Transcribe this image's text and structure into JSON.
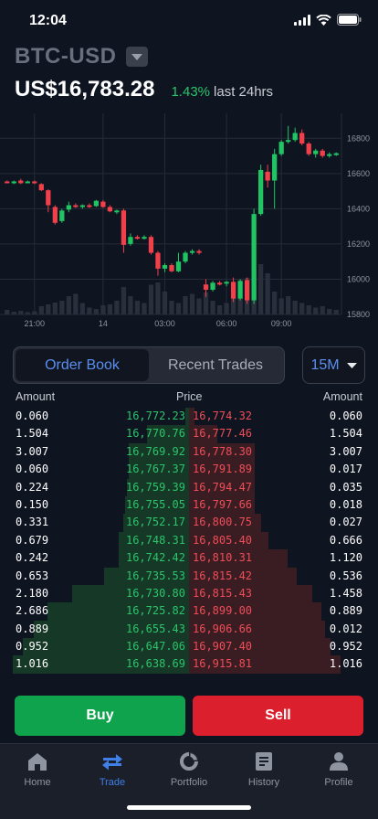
{
  "status": {
    "time": "12:04"
  },
  "header": {
    "pair": "BTC-USD",
    "price": "US$16,783.28",
    "change_pct": "1.43%",
    "change_label": "last 24hrs"
  },
  "chart_data": {
    "type": "candlestick",
    "y_ticks": [
      "15800",
      "16000",
      "16200",
      "16400",
      "16600",
      "16800"
    ],
    "x_ticks": [
      "21:00",
      "14",
      "03:00",
      "06:00",
      "09:00"
    ],
    "ylim": [
      15800,
      16900
    ],
    "colors": {
      "up": "#20c463",
      "down": "#f2404b",
      "volume": "#2a2f3c",
      "grid": "#262b37"
    },
    "candles": [
      {
        "i": 0,
        "o": 16555,
        "h": 16560,
        "l": 16545,
        "c": 16550
      },
      {
        "i": 1,
        "o": 16545,
        "h": 16560,
        "l": 16540,
        "c": 16555
      },
      {
        "i": 2,
        "o": 16560,
        "h": 16570,
        "l": 16540,
        "c": 16545
      },
      {
        "i": 3,
        "o": 16550,
        "h": 16560,
        "l": 16545,
        "c": 16555
      },
      {
        "i": 4,
        "o": 16555,
        "h": 16560,
        "l": 16540,
        "c": 16545
      },
      {
        "i": 5,
        "o": 16540,
        "h": 16545,
        "l": 16500,
        "c": 16505
      },
      {
        "i": 6,
        "o": 16505,
        "h": 16510,
        "l": 16380,
        "c": 16420
      },
      {
        "i": 7,
        "o": 16410,
        "h": 16420,
        "l": 16310,
        "c": 16320
      },
      {
        "i": 8,
        "o": 16330,
        "h": 16400,
        "l": 16320,
        "c": 16390
      },
      {
        "i": 9,
        "o": 16395,
        "h": 16440,
        "l": 16380,
        "c": 16420
      },
      {
        "i": 10,
        "o": 16420,
        "h": 16430,
        "l": 16405,
        "c": 16410
      },
      {
        "i": 11,
        "o": 16410,
        "h": 16425,
        "l": 16400,
        "c": 16420
      },
      {
        "i": 12,
        "o": 16420,
        "h": 16430,
        "l": 16405,
        "c": 16410
      },
      {
        "i": 13,
        "o": 16415,
        "h": 16450,
        "l": 16410,
        "c": 16445
      },
      {
        "i": 14,
        "o": 16440,
        "h": 16450,
        "l": 16405,
        "c": 16410
      },
      {
        "i": 15,
        "o": 16410,
        "h": 16420,
        "l": 16380,
        "c": 16385
      },
      {
        "i": 16,
        "o": 16385,
        "h": 16395,
        "l": 16370,
        "c": 16390
      },
      {
        "i": 17,
        "o": 16390,
        "h": 16400,
        "l": 16150,
        "c": 16195
      },
      {
        "i": 18,
        "o": 16200,
        "h": 16260,
        "l": 16190,
        "c": 16240
      },
      {
        "i": 19,
        "o": 16240,
        "h": 16250,
        "l": 16225,
        "c": 16235
      },
      {
        "i": 20,
        "o": 16235,
        "h": 16250,
        "l": 16225,
        "c": 16240
      },
      {
        "i": 21,
        "o": 16240,
        "h": 16250,
        "l": 16140,
        "c": 16150
      },
      {
        "i": 22,
        "o": 16150,
        "h": 16160,
        "l": 16020,
        "c": 16060
      },
      {
        "i": 23,
        "o": 16060,
        "h": 16090,
        "l": 16040,
        "c": 16080
      },
      {
        "i": 24,
        "o": 16080,
        "h": 16090,
        "l": 16040,
        "c": 16045
      },
      {
        "i": 25,
        "o": 16045,
        "h": 16150,
        "l": 16040,
        "c": 16100
      },
      {
        "i": 26,
        "o": 16100,
        "h": 16160,
        "l": 16090,
        "c": 16150
      },
      {
        "i": 27,
        "o": 16150,
        "h": 16170,
        "l": 16140,
        "c": 16160
      },
      {
        "i": 28,
        "o": 16160,
        "h": 16170,
        "l": 16140,
        "c": 16150
      },
      {
        "i": 29,
        "o": 15970,
        "h": 16000,
        "l": 15900,
        "c": 15940
      },
      {
        "i": 30,
        "o": 15940,
        "h": 15990,
        "l": 15930,
        "c": 15980
      },
      {
        "i": 31,
        "o": 15980,
        "h": 15990,
        "l": 15965,
        "c": 15975
      },
      {
        "i": 32,
        "o": 15975,
        "h": 15990,
        "l": 15960,
        "c": 15985
      },
      {
        "i": 33,
        "o": 15985,
        "h": 16010,
        "l": 15870,
        "c": 15890
      },
      {
        "i": 34,
        "o": 15890,
        "h": 16000,
        "l": 15880,
        "c": 15990
      },
      {
        "i": 35,
        "o": 15995,
        "h": 16010,
        "l": 15860,
        "c": 15880
      },
      {
        "i": 36,
        "o": 15880,
        "h": 16400,
        "l": 15860,
        "c": 16370
      },
      {
        "i": 37,
        "o": 16370,
        "h": 16650,
        "l": 16360,
        "c": 16620
      },
      {
        "i": 38,
        "o": 16610,
        "h": 16650,
        "l": 16520,
        "c": 16560
      },
      {
        "i": 39,
        "o": 16560,
        "h": 16740,
        "l": 16400,
        "c": 16710
      },
      {
        "i": 40,
        "o": 16710,
        "h": 16790,
        "l": 16700,
        "c": 16780
      },
      {
        "i": 41,
        "o": 16780,
        "h": 16870,
        "l": 16770,
        "c": 16790
      },
      {
        "i": 42,
        "o": 16790,
        "h": 16860,
        "l": 16780,
        "c": 16830
      },
      {
        "i": 43,
        "o": 16830,
        "h": 16850,
        "l": 16760,
        "c": 16770
      },
      {
        "i": 44,
        "o": 16770,
        "h": 16780,
        "l": 16700,
        "c": 16710
      },
      {
        "i": 45,
        "o": 16710,
        "h": 16740,
        "l": 16690,
        "c": 16730
      },
      {
        "i": 46,
        "o": 16730,
        "h": 16740,
        "l": 16690,
        "c": 16700
      },
      {
        "i": 47,
        "o": 16700,
        "h": 16720,
        "l": 16690,
        "c": 16710
      },
      {
        "i": 48,
        "o": 16710,
        "h": 16720,
        "l": 16700,
        "c": 16715
      }
    ],
    "volume": [
      10,
      6,
      8,
      5,
      7,
      18,
      22,
      26,
      30,
      40,
      45,
      25,
      15,
      12,
      20,
      22,
      30,
      60,
      40,
      30,
      25,
      65,
      70,
      50,
      30,
      25,
      40,
      45,
      35,
      48,
      30,
      20,
      25,
      40,
      75,
      80,
      100,
      110,
      90,
      50,
      35,
      40,
      30,
      25,
      20,
      15,
      18,
      12,
      10
    ]
  },
  "order_book": {
    "tabs": [
      "Order Book",
      "Recent Trades"
    ],
    "active_tab": 0,
    "interval": "15M",
    "headers": {
      "amount_left": "Amount",
      "price": "Price",
      "amount_right": "Amount"
    },
    "rows": [
      {
        "bid_amt": "0.060",
        "bid": "16,772.23",
        "ask": "16,774.32",
        "ask_amt": "0.060",
        "bid_depth": 0.02,
        "ask_depth": 0.03
      },
      {
        "bid_amt": "1.504",
        "bid": "16,770.76",
        "ask": "16,777.46",
        "ask_amt": "1.504",
        "bid_depth": 0.22,
        "ask_depth": 0.15
      },
      {
        "bid_amt": "3.007",
        "bid": "16,769.92",
        "ask": "16,778.30",
        "ask_amt": "3.007",
        "bid_depth": 0.32,
        "ask_depth": 0.35
      },
      {
        "bid_amt": "0.060",
        "bid": "16,767.37",
        "ask": "16,791.89",
        "ask_amt": "0.017",
        "bid_depth": 0.32,
        "ask_depth": 0.35
      },
      {
        "bid_amt": "0.224",
        "bid": "16,759.39",
        "ask": "16,794.47",
        "ask_amt": "0.035",
        "bid_depth": 0.33,
        "ask_depth": 0.35
      },
      {
        "bid_amt": "0.150",
        "bid": "16,755.05",
        "ask": "16,797.66",
        "ask_amt": "0.018",
        "bid_depth": 0.34,
        "ask_depth": 0.35
      },
      {
        "bid_amt": "0.331",
        "bid": "16,752.17",
        "ask": "16,800.75",
        "ask_amt": "0.027",
        "bid_depth": 0.35,
        "ask_depth": 0.38
      },
      {
        "bid_amt": "0.679",
        "bid": "16,748.31",
        "ask": "16,805.40",
        "ask_amt": "0.666",
        "bid_depth": 0.37,
        "ask_depth": 0.42
      },
      {
        "bid_amt": "0.242",
        "bid": "16,742.42",
        "ask": "16,810.31",
        "ask_amt": "1.120",
        "bid_depth": 0.37,
        "ask_depth": 0.52
      },
      {
        "bid_amt": "0.653",
        "bid": "16,735.53",
        "ask": "16,815.42",
        "ask_amt": "0.536",
        "bid_depth": 0.45,
        "ask_depth": 0.57
      },
      {
        "bid_amt": "2.180",
        "bid": "16,730.80",
        "ask": "16,815.43",
        "ask_amt": "1.458",
        "bid_depth": 0.62,
        "ask_depth": 0.65
      },
      {
        "bid_amt": "2.686",
        "bid": "16,725.82",
        "ask": "16,899.00",
        "ask_amt": "0.889",
        "bid_depth": 0.75,
        "ask_depth": 0.7
      },
      {
        "bid_amt": "0.889",
        "bid": "16,655.43",
        "ask": "16,906.66",
        "ask_amt": "0.012",
        "bid_depth": 0.82,
        "ask_depth": 0.72
      },
      {
        "bid_amt": "0.952",
        "bid": "16,647.06",
        "ask": "16,907.40",
        "ask_amt": "0.952",
        "bid_depth": 0.88,
        "ask_depth": 0.75
      },
      {
        "bid_amt": "1.016",
        "bid": "16,638.69",
        "ask": "16,915.81",
        "ask_amt": "1.016",
        "bid_depth": 0.93,
        "ask_depth": 0.8
      }
    ]
  },
  "actions": {
    "buy": "Buy",
    "sell": "Sell"
  },
  "nav": {
    "active": 1,
    "items": [
      {
        "label": "Home",
        "icon": "home-icon"
      },
      {
        "label": "Trade",
        "icon": "trade-arrows-icon"
      },
      {
        "label": "Portfolio",
        "icon": "portfolio-pie-icon"
      },
      {
        "label": "History",
        "icon": "history-document-icon"
      },
      {
        "label": "Profile",
        "icon": "profile-person-icon"
      }
    ]
  }
}
